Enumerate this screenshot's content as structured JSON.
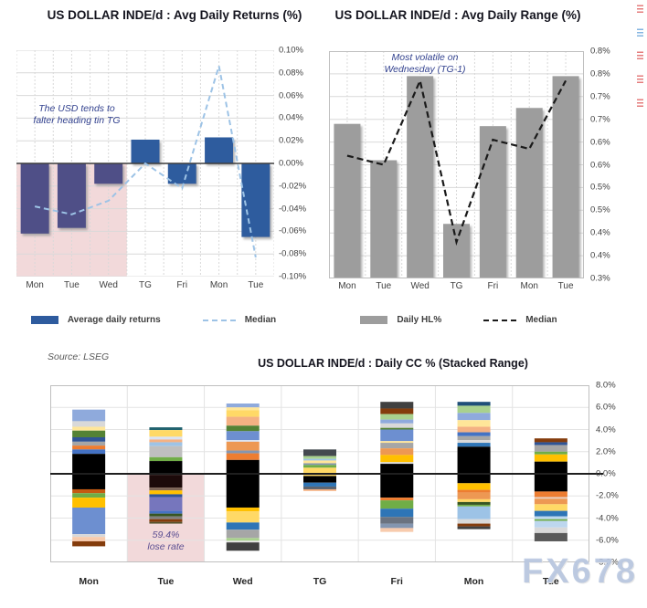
{
  "source_note": "Source: LSEG",
  "watermark": "FX678",
  "colors": {
    "returns_bar": "#2e5b9e",
    "returns_bar_early": "#4f4f87",
    "returns_median": "#9dc3e6",
    "range_bar": "#9d9d9d",
    "range_median": "#1a1a1a",
    "highlight_region": "#f2d9da",
    "grid": "#d9d9d9",
    "frame": "#bfbfbf",
    "zero_line": "#3d3d3d",
    "axis_text": "#404040"
  },
  "edge_marks": [
    {
      "y": 5,
      "color": "#e06666"
    },
    {
      "y": 31,
      "color": "#6fa8dc"
    },
    {
      "y": 56,
      "color": "#e06666"
    },
    {
      "y": 82,
      "color": "#e06666"
    },
    {
      "y": 108,
      "color": "#e06666"
    }
  ],
  "chart_data": [
    {
      "type": "bar",
      "title": "US DOLLAR INDE/d : Avg Daily Returns (%)",
      "categories": [
        "Mon",
        "Tue",
        "Wed",
        "TG",
        "Fri",
        "Mon",
        "Tue"
      ],
      "series": [
        {
          "name": "Average daily returns",
          "type": "bar",
          "values": [
            -0.062,
            -0.057,
            -0.018,
            0.021,
            -0.018,
            0.023,
            -0.065
          ]
        },
        {
          "name": "Median",
          "type": "dashed-line",
          "values": [
            -0.038,
            -0.045,
            -0.033,
            0.0,
            -0.022,
            0.086,
            -0.083
          ]
        }
      ],
      "ylim": [
        -0.1,
        0.1
      ],
      "ytick_labels": [
        "0.10%",
        "0.08%",
        "0.06%",
        "0.04%",
        "0.02%",
        "0.00%",
        "-0.02%",
        "-0.04%",
        "-0.06%",
        "-0.08%",
        "-0.10%"
      ],
      "annotation_lines": [
        "The USD tends to",
        "falter heading tin TG"
      ],
      "highlight_categories": [
        "Mon",
        "Tue",
        "Wed"
      ],
      "legend": [
        {
          "label": "Average daily returns"
        },
        {
          "label": "Median"
        }
      ],
      "grid": true,
      "legend_position": "bottom"
    },
    {
      "type": "bar",
      "title": "US DOLLAR INDE/d : Avg Daily Range (%)",
      "categories": [
        "Mon",
        "Tue",
        "Wed",
        "TG",
        "Fri",
        "Mon",
        "Tue"
      ],
      "series": [
        {
          "name": "Daily HL%",
          "type": "bar",
          "values": [
            0.64,
            0.56,
            0.745,
            0.42,
            0.635,
            0.675,
            0.745
          ]
        },
        {
          "name": "Median",
          "type": "dashed-line",
          "values": [
            0.57,
            0.55,
            0.735,
            0.38,
            0.605,
            0.585,
            0.735
          ]
        }
      ],
      "ylim": [
        0.3,
        0.8
      ],
      "ytick_labels": [
        "0.8%",
        "0.8%",
        "0.7%",
        "0.7%",
        "0.6%",
        "0.6%",
        "0.5%",
        "0.5%",
        "0.4%",
        "0.4%",
        "0.3%"
      ],
      "annotation_lines": [
        "Most volatile on",
        "Wednesday (TG-1)"
      ],
      "legend": [
        {
          "label": "Daily HL%"
        },
        {
          "label": "Median"
        }
      ],
      "grid": true,
      "legend_position": "bottom"
    },
    {
      "type": "stacked-bar",
      "title": "US DOLLAR INDE/d : Daily CC % (Stacked Range)",
      "categories": [
        "Mon",
        "Tue",
        "Wed",
        "TG",
        "Fri",
        "Mon",
        "Tue"
      ],
      "ylim": [
        -8,
        8
      ],
      "ytick_labels": [
        "8.0%",
        "6.0%",
        "4.0%",
        "2.0%",
        "0.0%",
        "-2.0%",
        "-4.0%",
        "-6.0%",
        "-8.0%"
      ],
      "annotation_lines": [
        "59.4%",
        "lose rate"
      ],
      "highlight_category": "Tue",
      "grid": true,
      "bars": [
        {
          "category": "Mon",
          "top": 5.8,
          "segments": [
            [
              "#8faadc",
              1.05
            ],
            [
              "#d9d9d9",
              0.5
            ],
            [
              "#ffe699",
              0.35
            ],
            [
              "#548235",
              0.6
            ],
            [
              "#2f5496",
              0.4
            ],
            [
              "#a6a6a6",
              0.35
            ],
            [
              "#ed7d31",
              0.35
            ],
            [
              "#4472c4",
              0.4
            ],
            [
              "#000000",
              3.2
            ],
            [
              "#c55a11",
              0.35
            ],
            [
              "#70ad47",
              0.4
            ],
            [
              "#ffc000",
              0.9
            ],
            [
              "#6d8fd0",
              2.4
            ],
            [
              "#d9d9d9",
              0.25
            ],
            [
              "#f8cbad",
              0.4
            ],
            [
              "#843c0c",
              0.45
            ]
          ]
        },
        {
          "category": "Tue",
          "top": 4.2,
          "segments": [
            [
              "#21626e",
              0.25
            ],
            [
              "#ffd966",
              0.6
            ],
            [
              "#dae3f3",
              0.25
            ],
            [
              "#f4b183",
              0.25
            ],
            [
              "#9dc3e6",
              0.35
            ],
            [
              "#bfbfbf",
              1.0
            ],
            [
              "#70ad47",
              0.35
            ],
            [
              "#000000",
              1.25
            ],
            [
              "#1c0a0a",
              1.15
            ],
            [
              "#7b6456",
              0.25
            ],
            [
              "#ffc000",
              0.35
            ],
            [
              "#2f5496",
              0.25
            ],
            [
              "#7676bd",
              1.25
            ],
            [
              "#4472c4",
              0.25
            ],
            [
              "#375623",
              0.25
            ],
            [
              "#808080",
              0.25
            ],
            [
              "#843c0c",
              0.25
            ],
            [
              "#55542e",
              0.15
            ]
          ]
        },
        {
          "category": "Wed",
          "top": 6.35,
          "segments": [
            [
              "#8faadc",
              0.35
            ],
            [
              "#ffe699",
              0.25
            ],
            [
              "#ffd966",
              0.6
            ],
            [
              "#f4b183",
              0.8
            ],
            [
              "#548235",
              0.5
            ],
            [
              "#6d8fd0",
              0.8
            ],
            [
              "#dae3f3",
              0.15
            ],
            [
              "#ed9853",
              0.8
            ],
            [
              "#8496b0",
              0.25
            ],
            [
              "#ed7d31",
              0.6
            ],
            [
              "#000000",
              4.3
            ],
            [
              "#ffc000",
              0.35
            ],
            [
              "#ffd966",
              1.0
            ],
            [
              "#2e75b6",
              0.65
            ],
            [
              "#a6a6a6",
              0.75
            ],
            [
              "#a9d18e",
              0.25
            ],
            [
              "#e7e6e6",
              0.15
            ],
            [
              "#404040",
              0.75
            ]
          ]
        },
        {
          "category": "TG",
          "top": 2.2,
          "segments": [
            [
              "#44494f",
              0.6
            ],
            [
              "#a9d18e",
              0.25
            ],
            [
              "#9dc3e6",
              0.15
            ],
            [
              "#ffe699",
              0.25
            ],
            [
              "#8496b0",
              0.15
            ],
            [
              "#70ad47",
              0.25
            ],
            [
              "#ffd966",
              0.75
            ],
            [
              "#000000",
              0.6
            ],
            [
              "#2e75b6",
              0.35
            ],
            [
              "#5b6470",
              0.25
            ],
            [
              "#f4b183",
              0.15
            ]
          ]
        },
        {
          "category": "Fri",
          "top": 6.5,
          "segments": [
            [
              "#404040",
              0.6
            ],
            [
              "#843c0c",
              0.5
            ],
            [
              "#a9d18e",
              0.5
            ],
            [
              "#8faadc",
              0.35
            ],
            [
              "#d9d9d9",
              0.4
            ],
            [
              "#548235",
              0.15
            ],
            [
              "#6d8fd0",
              1.05
            ],
            [
              "#ffe699",
              0.15
            ],
            [
              "#a6a6a6",
              0.5
            ],
            [
              "#ed9853",
              0.6
            ],
            [
              "#ffc000",
              0.65
            ],
            [
              "#d9d9d9",
              0.15
            ],
            [
              "#000000",
              3.05
            ],
            [
              "#ed7d31",
              0.25
            ],
            [
              "#70ad47",
              0.75
            ],
            [
              "#2e75b6",
              0.75
            ],
            [
              "#6b7380",
              0.6
            ],
            [
              "#8496b0",
              0.4
            ],
            [
              "#f8cbad",
              0.35
            ]
          ]
        },
        {
          "category": "Mon",
          "top": 6.5,
          "segments": [
            [
              "#1f4e79",
              0.35
            ],
            [
              "#a9d18e",
              0.65
            ],
            [
              "#8faadc",
              0.65
            ],
            [
              "#ffe699",
              0.6
            ],
            [
              "#f4b183",
              0.5
            ],
            [
              "#4472c4",
              0.35
            ],
            [
              "#a6a6a6",
              0.35
            ],
            [
              "#d9d9d9",
              0.25
            ],
            [
              "#2e75b6",
              0.35
            ],
            [
              "#000000",
              3.3
            ],
            [
              "#ffc000",
              0.6
            ],
            [
              "#ed7d31",
              0.25
            ],
            [
              "#ed9853",
              0.6
            ],
            [
              "#ffd966",
              0.25
            ],
            [
              "#375623",
              0.25
            ],
            [
              "#70ad47",
              0.15
            ],
            [
              "#9dc3e6",
              1.15
            ],
            [
              "#d9d9d9",
              0.4
            ],
            [
              "#843c0c",
              0.25
            ],
            [
              "#404040",
              0.25
            ]
          ]
        },
        {
          "category": "Tue",
          "top": 3.2,
          "segments": [
            [
              "#843c0c",
              0.35
            ],
            [
              "#2f5496",
              0.25
            ],
            [
              "#a6a6a6",
              0.6
            ],
            [
              "#70ad47",
              0.25
            ],
            [
              "#ffc000",
              0.65
            ],
            [
              "#000000",
              2.7
            ],
            [
              "#ed7d31",
              0.5
            ],
            [
              "#e8d0c2",
              0.15
            ],
            [
              "#ed9853",
              0.5
            ],
            [
              "#ffd966",
              0.6
            ],
            [
              "#2e75b6",
              0.5
            ],
            [
              "#bdd7ee",
              0.25
            ],
            [
              "#70ad47",
              0.15
            ],
            [
              "#bdd7ee",
              0.6
            ],
            [
              "#d9d9d9",
              0.5
            ],
            [
              "#595959",
              0.75
            ]
          ]
        }
      ]
    }
  ]
}
